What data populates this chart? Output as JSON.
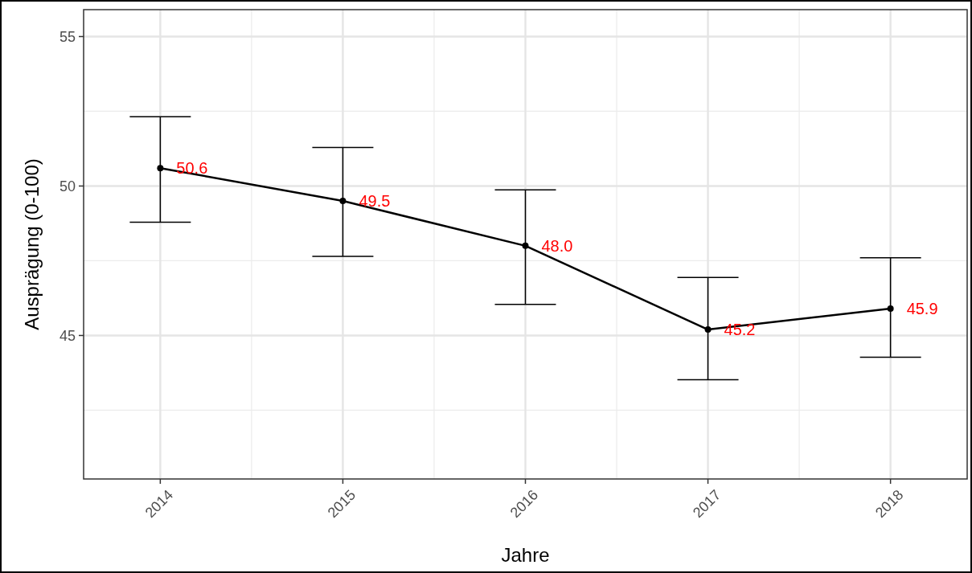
{
  "chart_data": {
    "type": "line",
    "xlabel": "Jahre",
    "ylabel": "Ausprägung (0-100)",
    "categories": [
      "2014",
      "2015",
      "2016",
      "2017",
      "2018"
    ],
    "color": "#000000",
    "values": [
      50.6,
      49.5,
      48.0,
      45.2,
      45.9
    ],
    "errors": [
      [
        48.79,
        52.32
      ],
      [
        47.65,
        51.29
      ],
      [
        46.04,
        49.87
      ],
      [
        43.52,
        46.94
      ],
      [
        44.27,
        47.6
      ]
    ],
    "value_labels": [
      "50.6",
      "49.5",
      "48.0",
      "45.2",
      "45.9"
    ],
    "ylim": [
      40.2,
      55.9
    ],
    "yticks": [
      45,
      50,
      55
    ],
    "grid": true,
    "marker": "circle",
    "line_style": "solid"
  }
}
